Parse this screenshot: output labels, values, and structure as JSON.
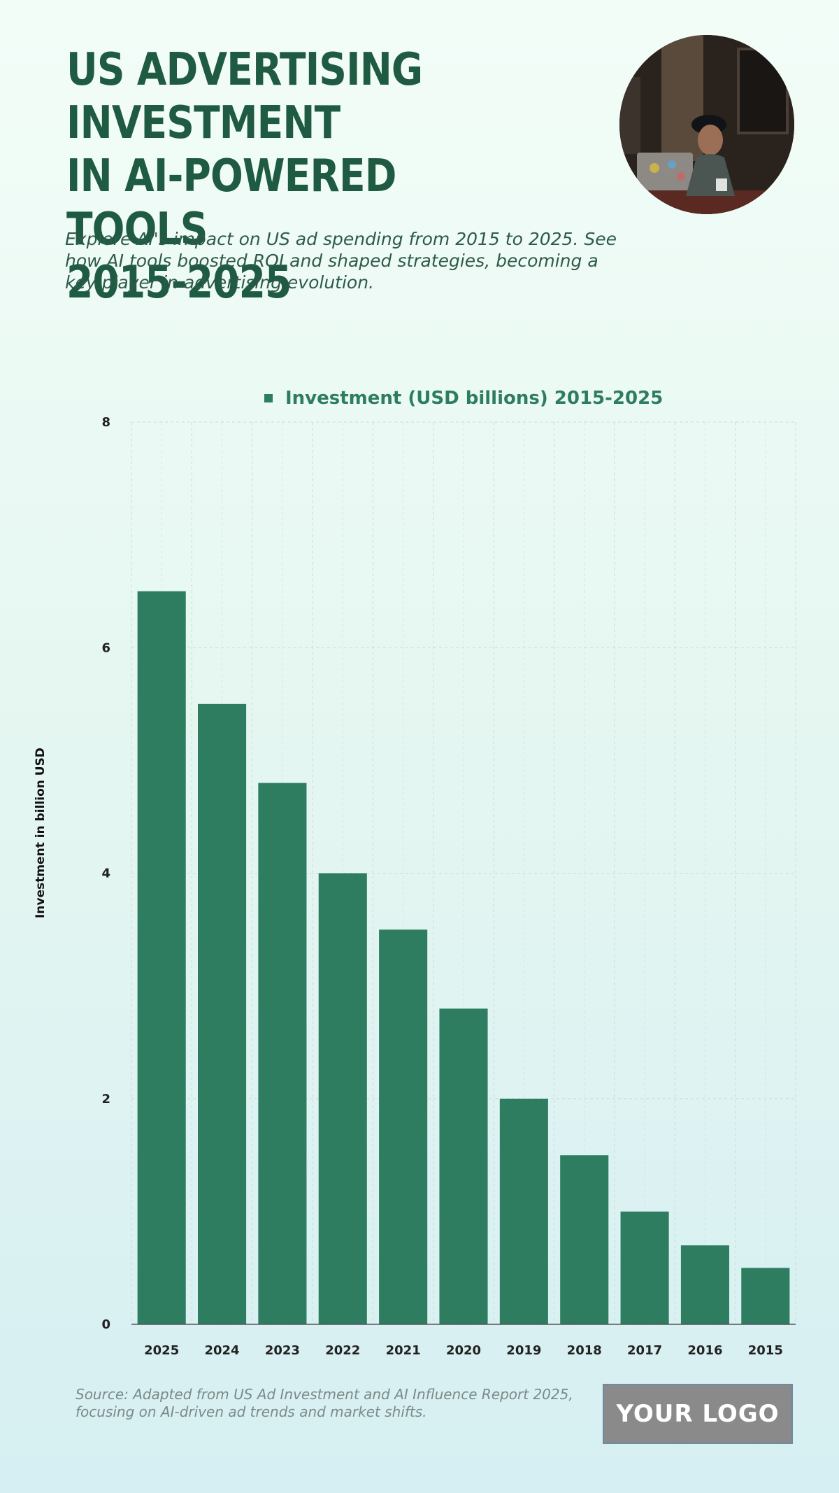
{
  "header": {
    "title": "US ADVERTISING INVESTMENT\nIN AI-POWERED TOOLS\n2015-2025",
    "subtitle": "Explore AI's impact on US ad spending from 2015 to 2025. See how AI tools boosted ROI and shaped strategies, becoming a key player in advertising evolution."
  },
  "footer": {
    "source": "Source: Adapted from US Ad Investment and AI Influence Report 2025, focusing on AI-driven ad trends and market shifts.",
    "logo_text": "YOUR LOGO"
  },
  "colors": {
    "bar": "#2e7d61",
    "title": "#1f5a43",
    "grid": "#c9ddd8"
  },
  "chart_data": {
    "type": "bar",
    "categories": [
      "2025",
      "2024",
      "2023",
      "2022",
      "2021",
      "2020",
      "2019",
      "2018",
      "2017",
      "2016",
      "2015"
    ],
    "series": [
      {
        "name": "Investment (USD billions) 2015-2025",
        "values": [
          6.5,
          5.5,
          4.8,
          4.0,
          3.5,
          2.8,
          2.0,
          1.5,
          1.0,
          0.7,
          0.5
        ]
      }
    ],
    "ylabel": "Investment in billion USD",
    "xlabel": "",
    "ylim": [
      0,
      8
    ],
    "yticks": [
      "0",
      "2",
      "4",
      "6",
      "8"
    ],
    "grid": true,
    "legend_position": "top-center"
  }
}
